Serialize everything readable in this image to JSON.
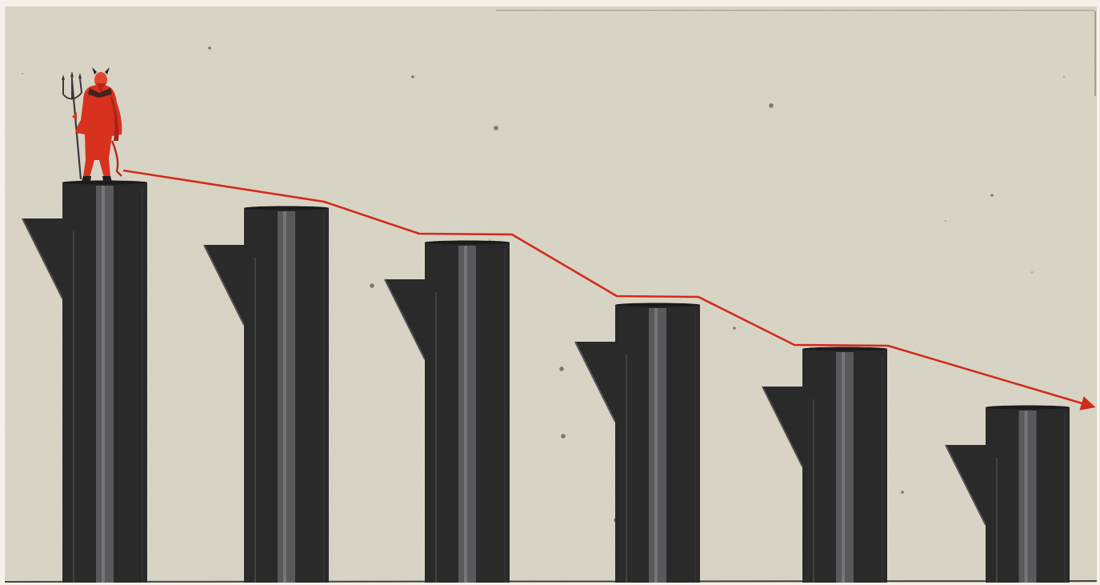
{
  "scene": {
    "background_color": "#d9d5c5",
    "frame_color": "#f3f1ea",
    "pillar_color": "#2a2a2b",
    "pillar_highlight_color": "#6a6a6c",
    "trend_line_color": "#d32a1c",
    "figure_color": "#d8321f",
    "figure_icon": "devil-with-trident-icon",
    "pillar_count": 6
  }
}
